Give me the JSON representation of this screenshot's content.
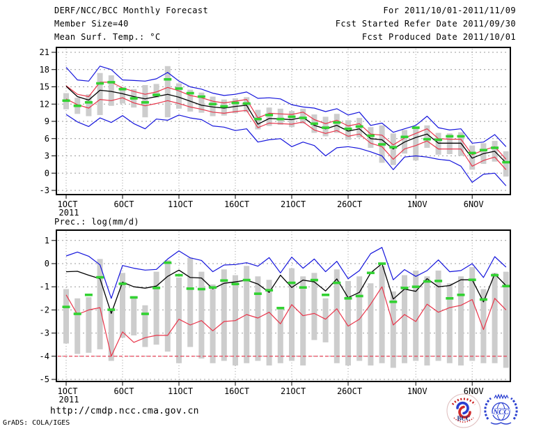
{
  "header": {
    "left": {
      "line1": "DERF/NCC/BCC Monthly Forecast",
      "line2": "Member Size=40"
    },
    "right": {
      "line1": "For 2011/10/01-2011/11/09",
      "line2": "Fcst Started Refer Date 2011/09/30",
      "line3": "Fcst Produced Date 2011/10/01"
    }
  },
  "footer": {
    "url": "http://cmdp.ncc.cma.gov.cn",
    "credit": "GrADS: COLA/IGES",
    "logos": [
      {
        "name": "bcc-logo",
        "label": "BCC"
      },
      {
        "name": "ncc-logo",
        "label": "NCC"
      }
    ]
  },
  "colors": {
    "background": "#ffffff",
    "frame": "#000000",
    "grid": "#999999",
    "ensemble_max_min": "#1414dc",
    "quartile": "#e8354a",
    "mean": "#000000",
    "green_marker": "#32d232",
    "spread_bar": "#cdcdcd"
  },
  "chart_data": [
    {
      "type": "line",
      "subtype": "ensemble-epsgram",
      "title": "Mean Surf. Temp.: °C",
      "xlabel": "",
      "ylabel": "",
      "grid": true,
      "x_dates": {
        "start": "2011-10-01",
        "end": "2011-11-09",
        "n_days": 40
      },
      "ylim": [
        -3.7,
        21.9
      ],
      "yticks": [
        21,
        18,
        15,
        12,
        9,
        6,
        3,
        0,
        -3
      ],
      "xticks": [
        {
          "day": 1,
          "label": "1OCT",
          "sublabel": "2011"
        },
        {
          "day": 6,
          "label": "6OCT"
        },
        {
          "day": 11,
          "label": "11OCT"
        },
        {
          "day": 16,
          "label": "16OCT"
        },
        {
          "day": 21,
          "label": "21OCT"
        },
        {
          "day": 26,
          "label": "26OCT"
        },
        {
          "day": 32,
          "label": "1NOV"
        },
        {
          "day": 37,
          "label": "6NOV"
        }
      ],
      "series": [
        {
          "name": "ensemble max",
          "color": "#1414dc",
          "width": 1.2,
          "values": [
            18.4,
            16.2,
            16.0,
            18.6,
            18.0,
            16.2,
            16.1,
            16.0,
            16.4,
            17.5,
            16.0,
            15.0,
            14.6,
            13.9,
            13.5,
            13.7,
            14.1,
            13.0,
            13.1,
            12.9,
            11.9,
            11.5,
            11.3,
            10.7,
            11.2,
            10.1,
            10.6,
            8.3,
            8.7,
            7.1,
            7.7,
            8.3,
            9.9,
            7.9,
            7.5,
            7.7,
            5.2,
            5.4,
            6.7,
            4.6
          ]
        },
        {
          "name": "upper quartile",
          "color": "#e8354a",
          "width": 1.2,
          "values": [
            15.2,
            13.7,
            13.3,
            15.8,
            15.8,
            14.8,
            14.2,
            13.7,
            14.1,
            14.9,
            14.3,
            13.5,
            13.1,
            12.5,
            12.2,
            12.5,
            12.8,
            9.6,
            10.4,
            10.3,
            10.2,
            10.6,
            9.3,
            8.6,
            9.2,
            8.2,
            8.6,
            6.8,
            6.6,
            4.9,
            6.1,
            6.9,
            7.7,
            6.0,
            5.9,
            5.9,
            3.2,
            4.0,
            4.6,
            2.4
          ]
        },
        {
          "name": "ensemble mean",
          "color": "#000000",
          "width": 1.3,
          "values": [
            15.1,
            13.3,
            12.7,
            14.4,
            14.2,
            13.8,
            13.3,
            12.9,
            13.3,
            13.7,
            13.2,
            12.5,
            11.8,
            11.5,
            11.3,
            11.6,
            11.8,
            8.5,
            9.5,
            9.4,
            9.3,
            9.7,
            8.3,
            7.7,
            8.3,
            7.3,
            7.7,
            6.0,
            5.8,
            4.2,
            5.4,
            6.2,
            6.8,
            5.2,
            5.2,
            5.2,
            2.6,
            3.4,
            3.8,
            1.8
          ]
        },
        {
          "name": "lower quartile",
          "color": "#e8354a",
          "width": 1.2,
          "values": [
            12.9,
            11.9,
            11.3,
            12.8,
            12.6,
            13.1,
            12.2,
            11.7,
            12.1,
            12.6,
            12.1,
            11.5,
            11.1,
            10.6,
            10.4,
            10.7,
            10.9,
            7.9,
            8.7,
            8.6,
            8.5,
            8.9,
            7.5,
            6.9,
            7.4,
            6.4,
            6.8,
            5.2,
            4.6,
            2.4,
            4.2,
            4.8,
            5.6,
            4.2,
            4.2,
            4.2,
            1.2,
            2.2,
            2.8,
            0.6
          ]
        },
        {
          "name": "ensemble min",
          "color": "#1414dc",
          "width": 1.2,
          "values": [
            10.2,
            8.9,
            8.1,
            9.6,
            8.8,
            10.0,
            8.6,
            7.7,
            9.4,
            9.2,
            10.1,
            9.6,
            9.3,
            8.2,
            8.0,
            7.4,
            7.7,
            5.4,
            5.8,
            6.0,
            4.6,
            5.4,
            4.8,
            3.0,
            4.4,
            4.6,
            4.3,
            3.7,
            3.0,
            0.6,
            2.8,
            3.0,
            2.8,
            2.4,
            2.2,
            1.2,
            -1.6,
            -0.2,
            0.0,
            -2.2
          ]
        }
      ],
      "markers": {
        "name": "daily green dash",
        "color": "#32d232",
        "values": [
          12.6,
          11.7,
          12.3,
          15.6,
          15.8,
          14.6,
          13.0,
          12.3,
          13.6,
          16.3,
          14.7,
          13.9,
          13.3,
          12.0,
          11.6,
          12.2,
          12.1,
          9.4,
          10.1,
          9.4,
          9.8,
          9.6,
          8.6,
          7.9,
          8.8,
          7.7,
          8.1,
          6.5,
          5.0,
          4.5,
          6.3,
          7.9,
          5.9,
          5.8,
          6.4,
          6.4,
          3.5,
          4.0,
          4.4,
          1.9
        ]
      },
      "bars": {
        "name": "ensemble spread bar",
        "color": "#cdcdcd",
        "top": [
          13.9,
          13.1,
          13.7,
          17.4,
          17.0,
          15.0,
          14.6,
          15.3,
          15.5,
          18.6,
          15.6,
          14.5,
          14.0,
          13.3,
          12.8,
          13.0,
          13.2,
          11.0,
          11.4,
          11.2,
          10.8,
          11.2,
          10.2,
          9.8,
          10.3,
          9.2,
          9.6,
          8.0,
          8.3,
          6.9,
          7.5,
          7.9,
          8.3,
          7.0,
          6.9,
          7.1,
          4.8,
          5.2,
          5.6,
          3.8
        ],
        "bottom": [
          11.1,
          10.3,
          9.9,
          10.1,
          11.7,
          12.1,
          11.4,
          9.7,
          13.1,
          9.7,
          11.2,
          10.7,
          10.5,
          9.9,
          10.0,
          10.4,
          10.6,
          7.6,
          8.2,
          8.4,
          8.0,
          8.6,
          7.0,
          6.4,
          7.0,
          5.8,
          6.2,
          4.4,
          1.8,
          1.4,
          3.4,
          2.2,
          4.4,
          3.2,
          3.3,
          3.0,
          0.6,
          1.6,
          2.0,
          -0.6
        ]
      }
    },
    {
      "type": "line",
      "subtype": "ensemble-epsgram",
      "title": "Prec.: log(mm/d)",
      "xlabel": "",
      "ylabel": "",
      "grid": true,
      "x_dates": {
        "start": "2011-10-01",
        "end": "2011-11-09",
        "n_days": 40
      },
      "ylim": [
        -5.1,
        1.4
      ],
      "yticks": [
        1,
        0,
        -1,
        -2,
        -3,
        -4,
        -5
      ],
      "xticks": [
        {
          "day": 1,
          "label": "1OCT",
          "sublabel": "2011"
        },
        {
          "day": 6,
          "label": "6OCT"
        },
        {
          "day": 11,
          "label": "11OCT"
        },
        {
          "day": 16,
          "label": "16OCT"
        },
        {
          "day": 21,
          "label": "21OCT"
        },
        {
          "day": 26,
          "label": "26OCT"
        },
        {
          "day": 32,
          "label": "1NOV"
        },
        {
          "day": 37,
          "label": "6NOV"
        }
      ],
      "threshold_line": {
        "value": -4,
        "color": "#e8354a",
        "style": "dashed"
      },
      "series": [
        {
          "name": "ensemble max",
          "color": "#1414dc",
          "width": 1.2,
          "values": [
            0.33,
            0.5,
            0.32,
            -0.05,
            -1.5,
            -0.08,
            -0.2,
            -0.28,
            -0.25,
            0.2,
            0.55,
            0.25,
            0.14,
            -0.35,
            -0.06,
            -0.04,
            0.04,
            -0.11,
            0.26,
            -0.4,
            0.28,
            -0.2,
            0.2,
            -0.35,
            0.1,
            -0.65,
            -0.3,
            0.43,
            0.7,
            -0.7,
            -0.26,
            -0.55,
            -0.3,
            0.16,
            -0.35,
            -0.3,
            0.0,
            -0.6,
            0.3,
            -0.15
          ]
        },
        {
          "name": "ensemble mean",
          "color": "#000000",
          "width": 1.3,
          "values": [
            -0.35,
            -0.33,
            -0.5,
            -0.65,
            -2.15,
            -0.8,
            -1.0,
            -1.06,
            -0.97,
            -0.55,
            -0.28,
            -0.6,
            -0.62,
            -1.09,
            -0.85,
            -0.79,
            -0.71,
            -0.88,
            -1.24,
            -0.5,
            -1.03,
            -0.71,
            -0.79,
            -1.18,
            -0.66,
            -1.47,
            -1.24,
            -0.4,
            0.0,
            -1.53,
            -1.1,
            -1.2,
            -0.65,
            -1.0,
            -0.95,
            -0.7,
            -0.7,
            -1.65,
            -0.45,
            -0.95
          ]
        },
        {
          "name": "ensemble min",
          "color": "#e8354a",
          "width": 1.2,
          "values": [
            -1.35,
            -2.2,
            -2.0,
            -1.9,
            -4.0,
            -2.95,
            -3.4,
            -3.2,
            -3.1,
            -3.1,
            -2.4,
            -2.65,
            -2.46,
            -2.9,
            -2.5,
            -2.46,
            -2.2,
            -2.35,
            -2.1,
            -2.6,
            -1.77,
            -2.25,
            -2.15,
            -2.4,
            -1.95,
            -2.7,
            -2.4,
            -1.75,
            -1.0,
            -2.65,
            -2.2,
            -2.5,
            -1.75,
            -2.1,
            -1.9,
            -1.8,
            -1.55,
            -2.85,
            -1.5,
            -2.0
          ]
        }
      ],
      "markers": {
        "name": "daily green dash",
        "color": "#32d232",
        "values": [
          -1.87,
          -2.17,
          -1.35,
          -0.59,
          -1.99,
          -0.87,
          -1.46,
          -2.17,
          -1.05,
          0.04,
          -0.5,
          -1.08,
          -1.1,
          -1.03,
          -0.73,
          -0.88,
          -0.71,
          -1.3,
          -1.15,
          -1.92,
          -0.83,
          -1.03,
          -0.71,
          -1.35,
          -0.83,
          -1.5,
          -1.4,
          -0.4,
          0.0,
          -1.65,
          -1.05,
          -1.0,
          -0.77,
          -0.75,
          -1.5,
          -1.35,
          -0.7,
          -1.55,
          -0.5,
          -0.97
        ]
      },
      "bars": {
        "name": "ensemble spread bar",
        "color": "#cdcdcd",
        "top": [
          -1.1,
          -1.5,
          -1.45,
          0.2,
          -2.0,
          -0.4,
          -1.4,
          -1.8,
          -0.35,
          0.15,
          -0.6,
          0.25,
          -0.35,
          -0.9,
          -0.25,
          -0.5,
          -0.1,
          -0.55,
          -0.7,
          -1.95,
          -0.2,
          -0.55,
          -0.4,
          -1.5,
          -0.25,
          -0.75,
          -0.55,
          -0.85,
          -0.1,
          -1.2,
          -0.5,
          -0.3,
          -0.55,
          -0.3,
          -0.85,
          -0.55,
          -0.15,
          -1.1,
          -0.4,
          -0.35
        ],
        "bottom": [
          -3.45,
          -3.9,
          -3.85,
          -3.7,
          -4.2,
          -3.2,
          -3.1,
          -3.6,
          -3.5,
          -3.8,
          -4.3,
          -3.6,
          -4.1,
          -4.3,
          -4.2,
          -4.4,
          -4.3,
          -4.2,
          -4.4,
          -4.3,
          -4.2,
          -4.4,
          -3.3,
          -3.4,
          -4.3,
          -4.4,
          -4.2,
          -4.4,
          -4.3,
          -4.5,
          -4.3,
          -4.2,
          -4.4,
          -4.2,
          -4.3,
          -4.4,
          -4.2,
          -4.3,
          -4.3,
          -4.5
        ]
      }
    }
  ]
}
